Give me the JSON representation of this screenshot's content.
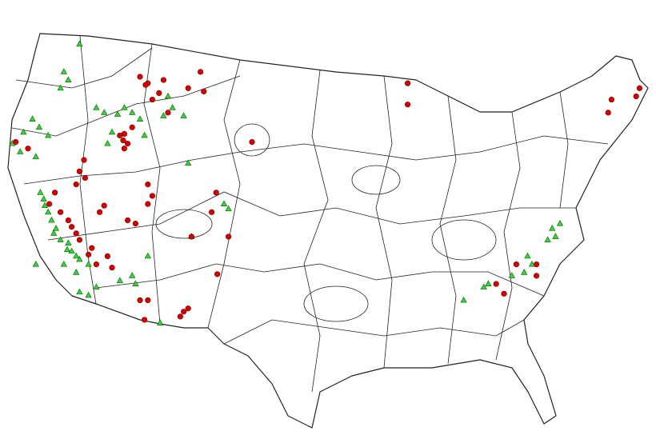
{
  "map": {
    "colors": {
      "circle_fill": "#d40000",
      "circle_stroke": "#7a0000",
      "triangle_fill": "#33d633",
      "triangle_stroke": "#0d5a0d",
      "border": "#222222"
    },
    "marker_types": {
      "circles": "red-circle",
      "triangles": "green-triangle"
    },
    "circles": [
      [
        -122.5,
        42.1
      ],
      [
        -123.6,
        42.5
      ],
      [
        -120.1,
        39.4
      ],
      [
        -120.6,
        38.7
      ],
      [
        -119.6,
        38.2
      ],
      [
        -118.9,
        37.7
      ],
      [
        -118.2,
        36.9
      ],
      [
        -117.9,
        36.5
      ],
      [
        -117.1,
        35.6
      ],
      [
        -116.4,
        35.0
      ],
      [
        -115.4,
        35.5
      ],
      [
        -115.0,
        34.8
      ],
      [
        -117.9,
        40.7
      ],
      [
        -118.2,
        39.9
      ],
      [
        -117.5,
        41.4
      ],
      [
        -116.1,
        38.2
      ],
      [
        -115.7,
        38.6
      ],
      [
        -114.3,
        42.9
      ],
      [
        -113.6,
        42.4
      ],
      [
        -113.9,
        42.1
      ],
      [
        -113.2,
        43.4
      ],
      [
        -112.5,
        46.5
      ],
      [
        -111.8,
        46.1
      ],
      [
        -111.4,
        45.1
      ],
      [
        -110.4,
        46.3
      ],
      [
        -110.0,
        44.3
      ],
      [
        -108.2,
        45.8
      ],
      [
        -107.1,
        46.8
      ],
      [
        -106.8,
        45.6
      ],
      [
        -111.8,
        39.9
      ],
      [
        -111.4,
        39.2
      ],
      [
        -111.8,
        38.7
      ],
      [
        -113.6,
        37.7
      ],
      [
        -112.9,
        37.5
      ],
      [
        -107.9,
        36.7
      ],
      [
        -106.1,
        38.2
      ],
      [
        -105.7,
        39.4
      ],
      [
        -104.6,
        36.7
      ],
      [
        -108.6,
        32.1
      ],
      [
        -108.2,
        32.3
      ],
      [
        -112.1,
        31.6
      ],
      [
        -112.5,
        32.8
      ],
      [
        -111.8,
        32.8
      ],
      [
        -105.6,
        34.4
      ],
      [
        -102.5,
        42.5
      ],
      [
        -88.6,
        46.1
      ],
      [
        -88.6,
        44.8
      ],
      [
        -67.9,
        45.8
      ],
      [
        -68.2,
        45.3
      ],
      [
        -70.7,
        44.3
      ],
      [
        -70.4,
        45.1
      ],
      [
        -80.7,
        33.8
      ],
      [
        -80.0,
        33.2
      ],
      [
        -77.1,
        34.3
      ],
      [
        -78.9,
        35.0
      ],
      [
        -77.1,
        35.0
      ],
      [
        -108.9,
        31.8
      ],
      [
        -113.9,
        43.0
      ],
      [
        -114.0,
        42.6
      ],
      [
        -117.4,
        40.3
      ],
      [
        -116.8,
        36.0
      ],
      [
        -118.6,
        37.3
      ],
      [
        -112.0,
        46.0
      ],
      [
        -110.8,
        45.5
      ]
    ],
    "triangles": [
      [
        -117.9,
        48.5
      ],
      [
        -119.3,
        46.8
      ],
      [
        -118.9,
        46.3
      ],
      [
        -119.6,
        45.8
      ],
      [
        -116.4,
        44.6
      ],
      [
        -115.7,
        44.3
      ],
      [
        -113.9,
        44.6
      ],
      [
        -113.2,
        44.3
      ],
      [
        -112.5,
        43.9
      ],
      [
        -115.0,
        43.1
      ],
      [
        -115.4,
        42.4
      ],
      [
        -112.1,
        42.9
      ],
      [
        -110.0,
        45.3
      ],
      [
        -109.6,
        44.6
      ],
      [
        -110.4,
        44.1
      ],
      [
        -108.6,
        44.1
      ],
      [
        -108.2,
        41.2
      ],
      [
        -122.1,
        43.9
      ],
      [
        -122.9,
        43.1
      ],
      [
        -123.2,
        41.9
      ],
      [
        -121.8,
        41.6
      ],
      [
        -123.9,
        42.4
      ],
      [
        -120.7,
        42.9
      ],
      [
        -121.4,
        39.4
      ],
      [
        -121.1,
        39.0
      ],
      [
        -120.7,
        38.2
      ],
      [
        -120.4,
        37.7
      ],
      [
        -120.0,
        37.2
      ],
      [
        -119.6,
        36.5
      ],
      [
        -118.9,
        36.3
      ],
      [
        -118.6,
        35.8
      ],
      [
        -118.2,
        35.5
      ],
      [
        -117.9,
        35.3
      ],
      [
        -117.1,
        35.0
      ],
      [
        -119.3,
        35.0
      ],
      [
        -118.2,
        34.5
      ],
      [
        -121.8,
        35.0
      ],
      [
        -117.9,
        33.3
      ],
      [
        -117.1,
        33.1
      ],
      [
        -116.4,
        33.6
      ],
      [
        -114.3,
        34.0
      ],
      [
        -113.2,
        34.3
      ],
      [
        -112.9,
        33.8
      ],
      [
        -110.7,
        31.4
      ],
      [
        -111.8,
        35.5
      ],
      [
        -105.0,
        38.7
      ],
      [
        -104.6,
        38.4
      ],
      [
        -107.9,
        36.7
      ],
      [
        -75.7,
        37.2
      ],
      [
        -75.4,
        36.7
      ],
      [
        -76.1,
        36.5
      ],
      [
        -77.9,
        35.5
      ],
      [
        -77.5,
        35.0
      ],
      [
        -78.2,
        34.5
      ],
      [
        -79.3,
        34.3
      ],
      [
        -81.4,
        33.8
      ],
      [
        -81.8,
        33.6
      ],
      [
        -83.6,
        32.8
      ],
      [
        -75.0,
        37.5
      ],
      [
        -121.0,
        38.6
      ],
      [
        -120.2,
        36.9
      ],
      [
        -119.0,
        35.9
      ],
      [
        -114.5,
        44.2
      ],
      [
        -121.5,
        43.4
      ]
    ]
  }
}
